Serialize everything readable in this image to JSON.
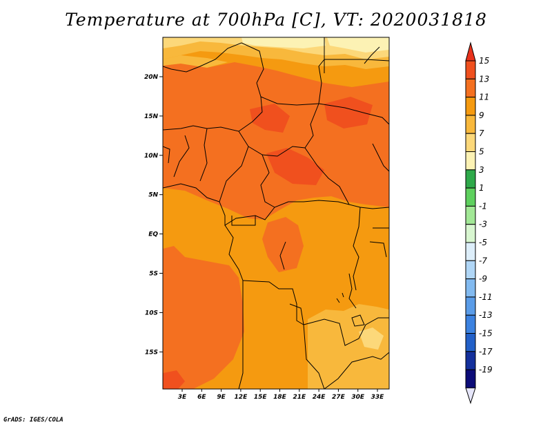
{
  "title": "Temperature at 700hPa [C], VT: 2020031818",
  "footer": "GrADS: IGES/COLA",
  "map": {
    "x_ticks": [
      "3E",
      "6E",
      "9E",
      "12E",
      "15E",
      "18E",
      "21E",
      "24E",
      "27E",
      "30E",
      "33E"
    ],
    "y_ticks": [
      "20N",
      "15N",
      "10N",
      "5N",
      "EQ",
      "5S",
      "10S",
      "15S"
    ]
  },
  "colorbar": {
    "labels": [
      "15",
      "13",
      "11",
      "9",
      "7",
      "5",
      "3",
      "1",
      "-1",
      "-3",
      "-5",
      "-7",
      "-9",
      "-11",
      "-13",
      "-15",
      "-17",
      "-19"
    ],
    "colors": [
      "#e8321c",
      "#f0501e",
      "#f47020",
      "#f59a10",
      "#f8b83c",
      "#fcd87a",
      "#fcf2b4",
      "#2ea94a",
      "#5ed05e",
      "#a2e896",
      "#d8f6d0",
      "#ddeefa",
      "#b0d6f6",
      "#82baf0",
      "#5a9ce8",
      "#3c82e0",
      "#2260c8",
      "#14309c",
      "#0c0c78",
      "#e6e6fa"
    ]
  },
  "palette": {
    "t13": "#f0501e",
    "t11": "#f47020",
    "t9": "#f59a10",
    "t7": "#f8b83c",
    "t5": "#fcd87a",
    "t3": "#fcf2b4"
  }
}
